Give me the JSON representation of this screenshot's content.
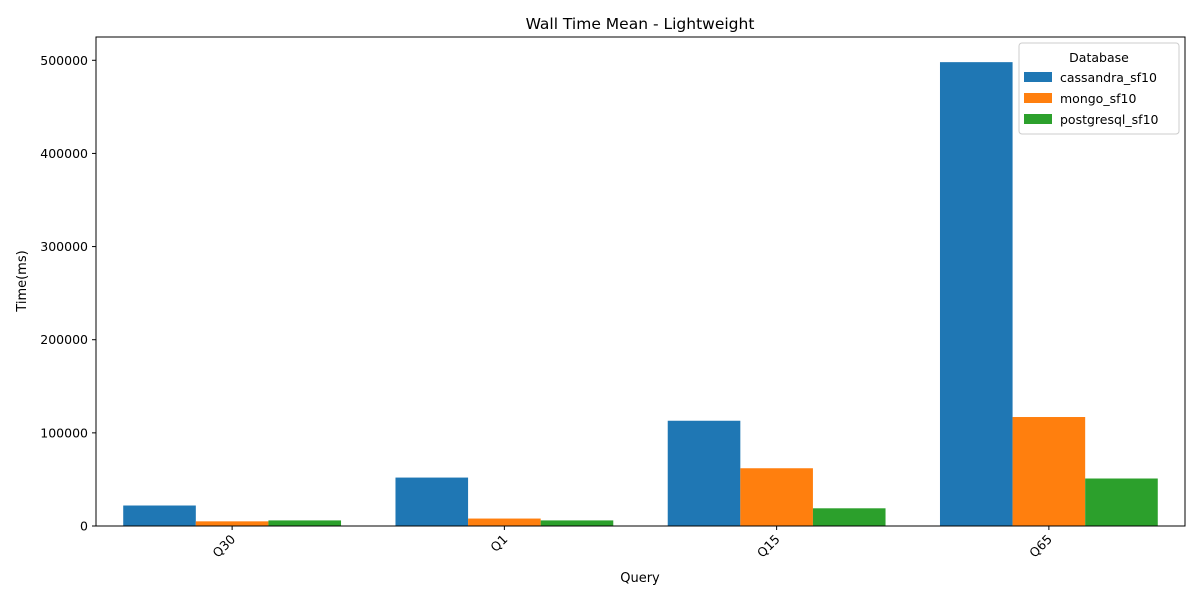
{
  "chart_data": {
    "type": "bar",
    "title": "Wall Time Mean - Lightweight",
    "xlabel": "Query",
    "ylabel": "Time(ms)",
    "categories": [
      "Q30",
      "Q1",
      "Q15",
      "Q65"
    ],
    "ylim": [
      0,
      525000
    ],
    "yticks": [
      0,
      100000,
      200000,
      300000,
      400000,
      500000
    ],
    "grid": false,
    "legend": {
      "title": "Database",
      "placement": "top-right"
    },
    "series": [
      {
        "name": "cassandra_sf10",
        "color": "#1f77b4",
        "values": [
          22000,
          52000,
          113000,
          498000
        ]
      },
      {
        "name": "mongo_sf10",
        "color": "#ff7f0e",
        "values": [
          5000,
          8000,
          62000,
          117000
        ]
      },
      {
        "name": "postgresql_sf10",
        "color": "#2ca02c",
        "values": [
          6000,
          6000,
          19000,
          51000
        ]
      }
    ]
  }
}
